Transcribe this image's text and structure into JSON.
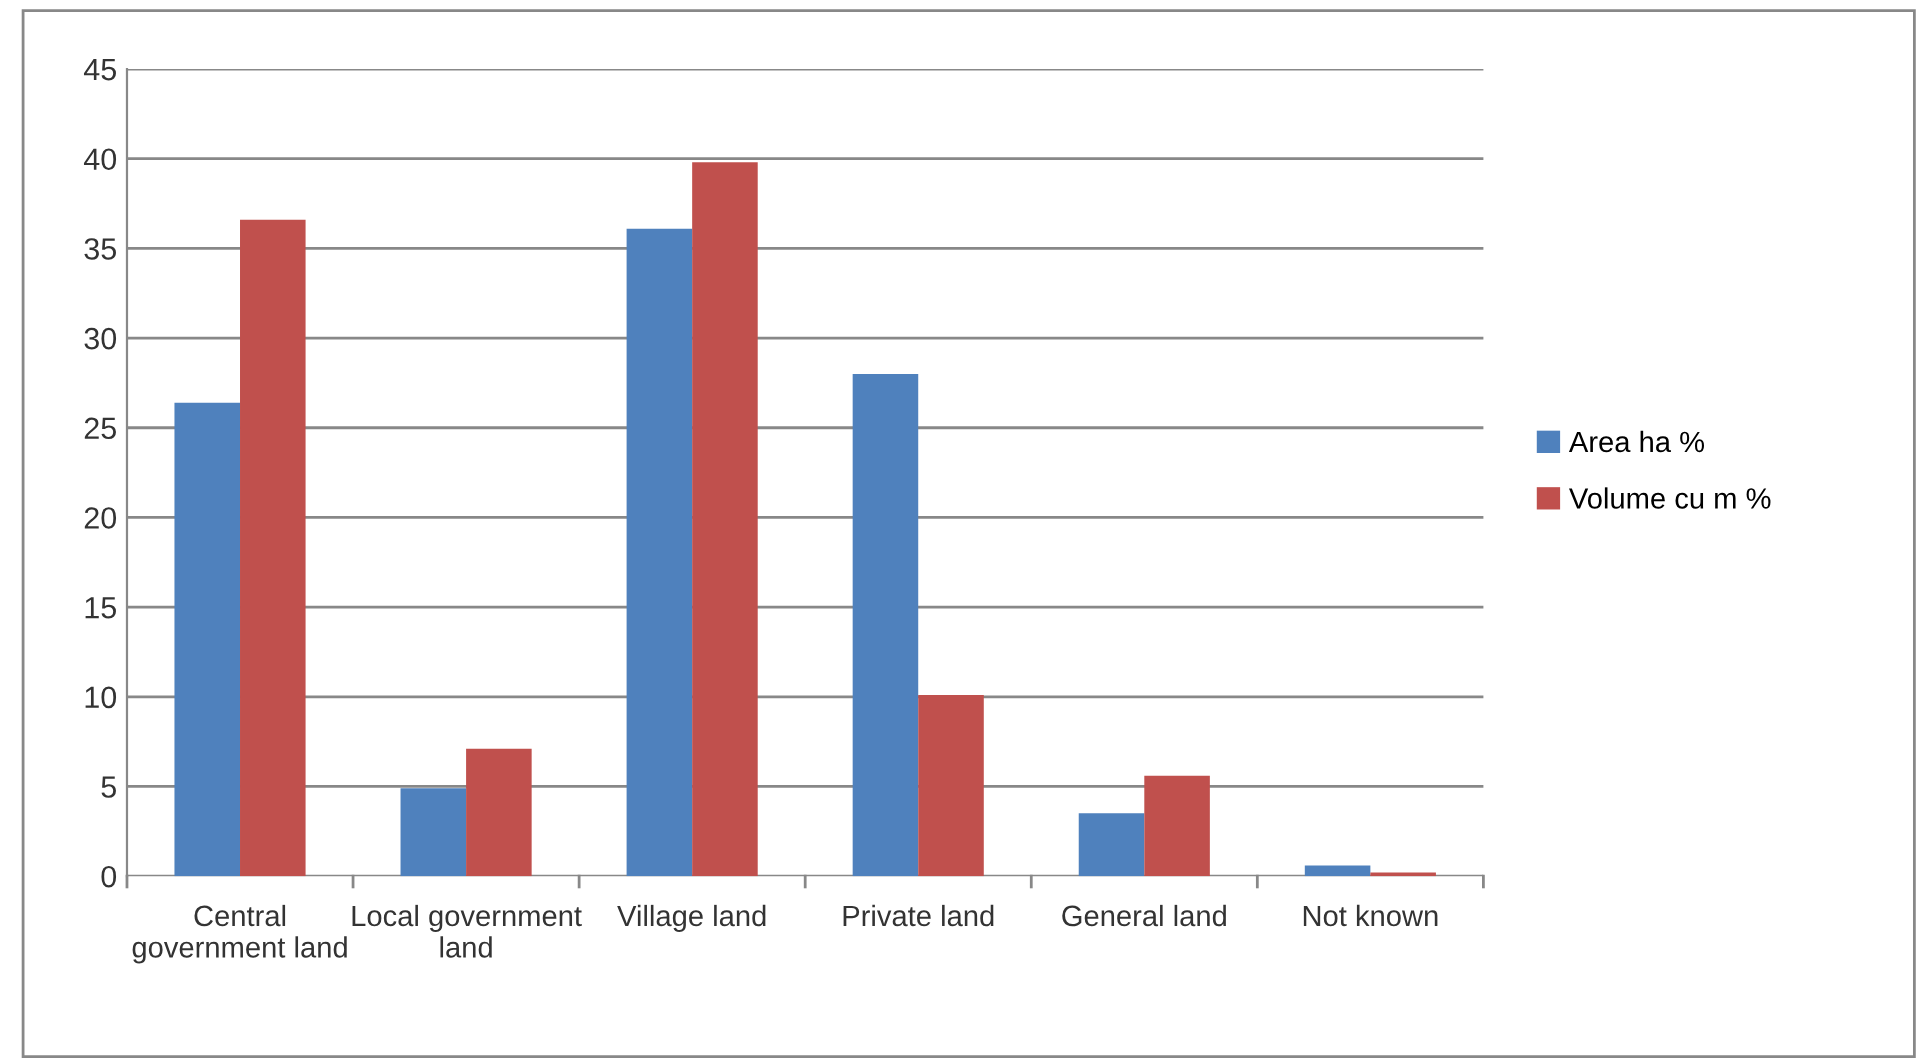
{
  "chart_data": {
    "type": "bar",
    "categories": [
      "Central government land",
      "Local government land",
      "Village land",
      "Private land",
      "General land",
      "Not known"
    ],
    "series": [
      {
        "name": "Area ha %",
        "color": "#4f81bd",
        "values": [
          26.4,
          4.9,
          36.1,
          28.0,
          3.5,
          0.6
        ]
      },
      {
        "name": "Volume cu m %",
        "color": "#c0504d",
        "values": [
          36.6,
          7.1,
          39.8,
          10.1,
          5.6,
          0.2
        ]
      }
    ],
    "ylim": [
      0,
      45
    ],
    "yticks": [
      0,
      5,
      10,
      15,
      20,
      25,
      30,
      35,
      40,
      45
    ],
    "grid": "y",
    "legend": "right"
  }
}
